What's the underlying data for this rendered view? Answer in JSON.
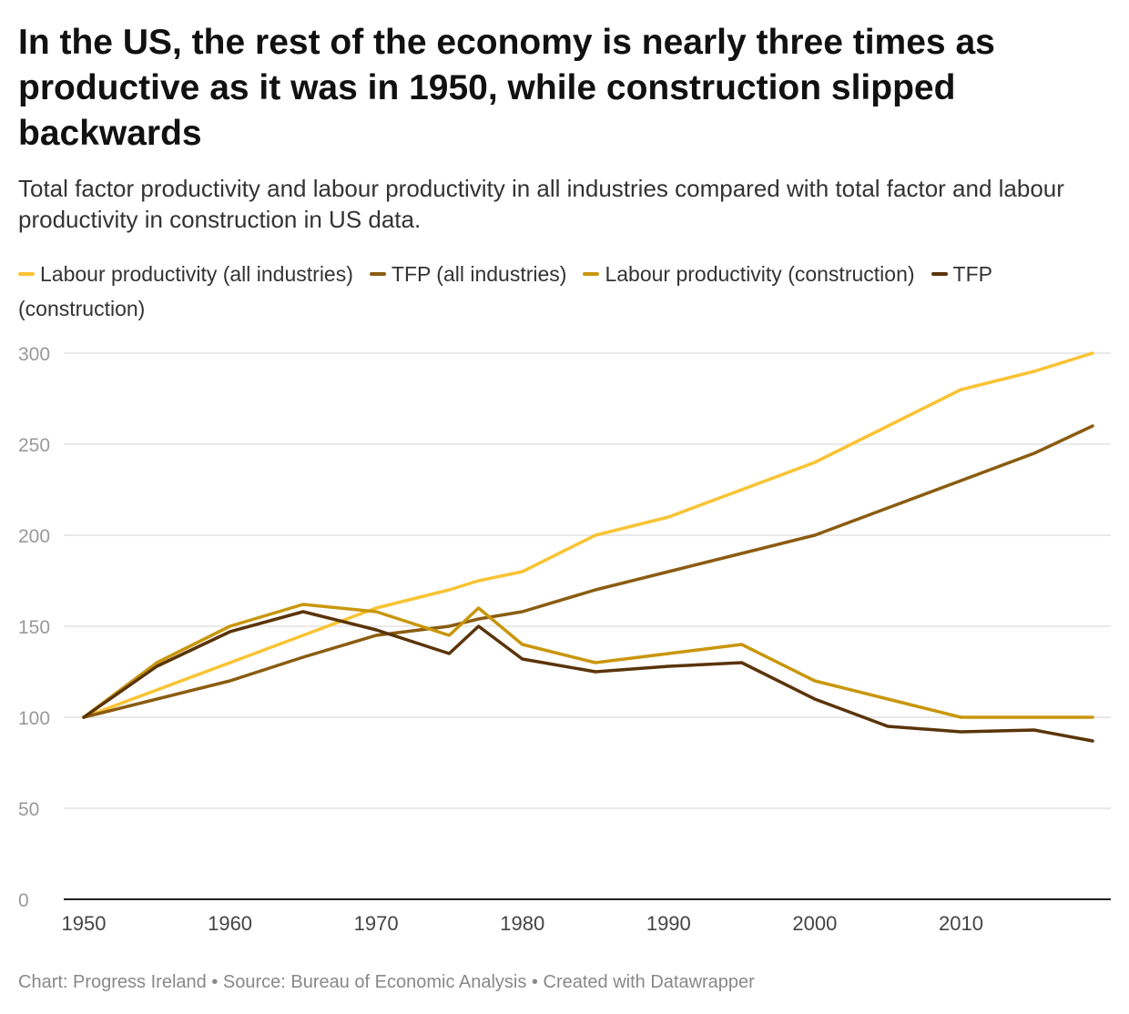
{
  "chart_data": {
    "type": "line",
    "title": "In the US, the rest of the economy is nearly three times as productive as it was in 1950, while construction slipped backwards",
    "subtitle": "Total factor productivity and labour productivity in all industries compared with total factor and labour productivity in construction in US data.",
    "xlabel": "",
    "ylabel": "",
    "xlim": [
      1950,
      2019
    ],
    "ylim": [
      0,
      300
    ],
    "yticks": [
      0,
      50,
      100,
      150,
      200,
      250,
      300
    ],
    "xticks": [
      1950,
      1960,
      1970,
      1980,
      1990,
      2000,
      2010
    ],
    "grid": true,
    "legend_placement": "top",
    "x": [
      1950,
      1955,
      1960,
      1965,
      1970,
      1975,
      1977,
      1980,
      1985,
      1990,
      1995,
      2000,
      2005,
      2010,
      2015,
      2019
    ],
    "series": [
      {
        "name": "Labour productivity (all industries)",
        "color": "#f9c333",
        "values": [
          100,
          115,
          130,
          145,
          160,
          170,
          175,
          180,
          200,
          210,
          225,
          240,
          260,
          280,
          290,
          300
        ]
      },
      {
        "name": "TFP (all industries)",
        "color": "#8a5c10",
        "values": [
          100,
          110,
          120,
          133,
          145,
          150,
          154,
          158,
          170,
          180,
          190,
          200,
          215,
          230,
          245,
          260
        ]
      },
      {
        "name": "Labour productivity (construction)",
        "color": "#c9960c",
        "values": [
          100,
          130,
          150,
          162,
          158,
          145,
          160,
          140,
          130,
          135,
          140,
          120,
          110,
          100,
          100,
          100
        ]
      },
      {
        "name": "TFP (construction)",
        "color": "#5a3409",
        "values": [
          100,
          128,
          147,
          158,
          148,
          135,
          150,
          132,
          125,
          128,
          130,
          110,
          95,
          92,
          93,
          87
        ]
      }
    ]
  },
  "footer": "Chart: Progress Ireland • Source: Bureau of Economic Analysis • Created with Datawrapper"
}
